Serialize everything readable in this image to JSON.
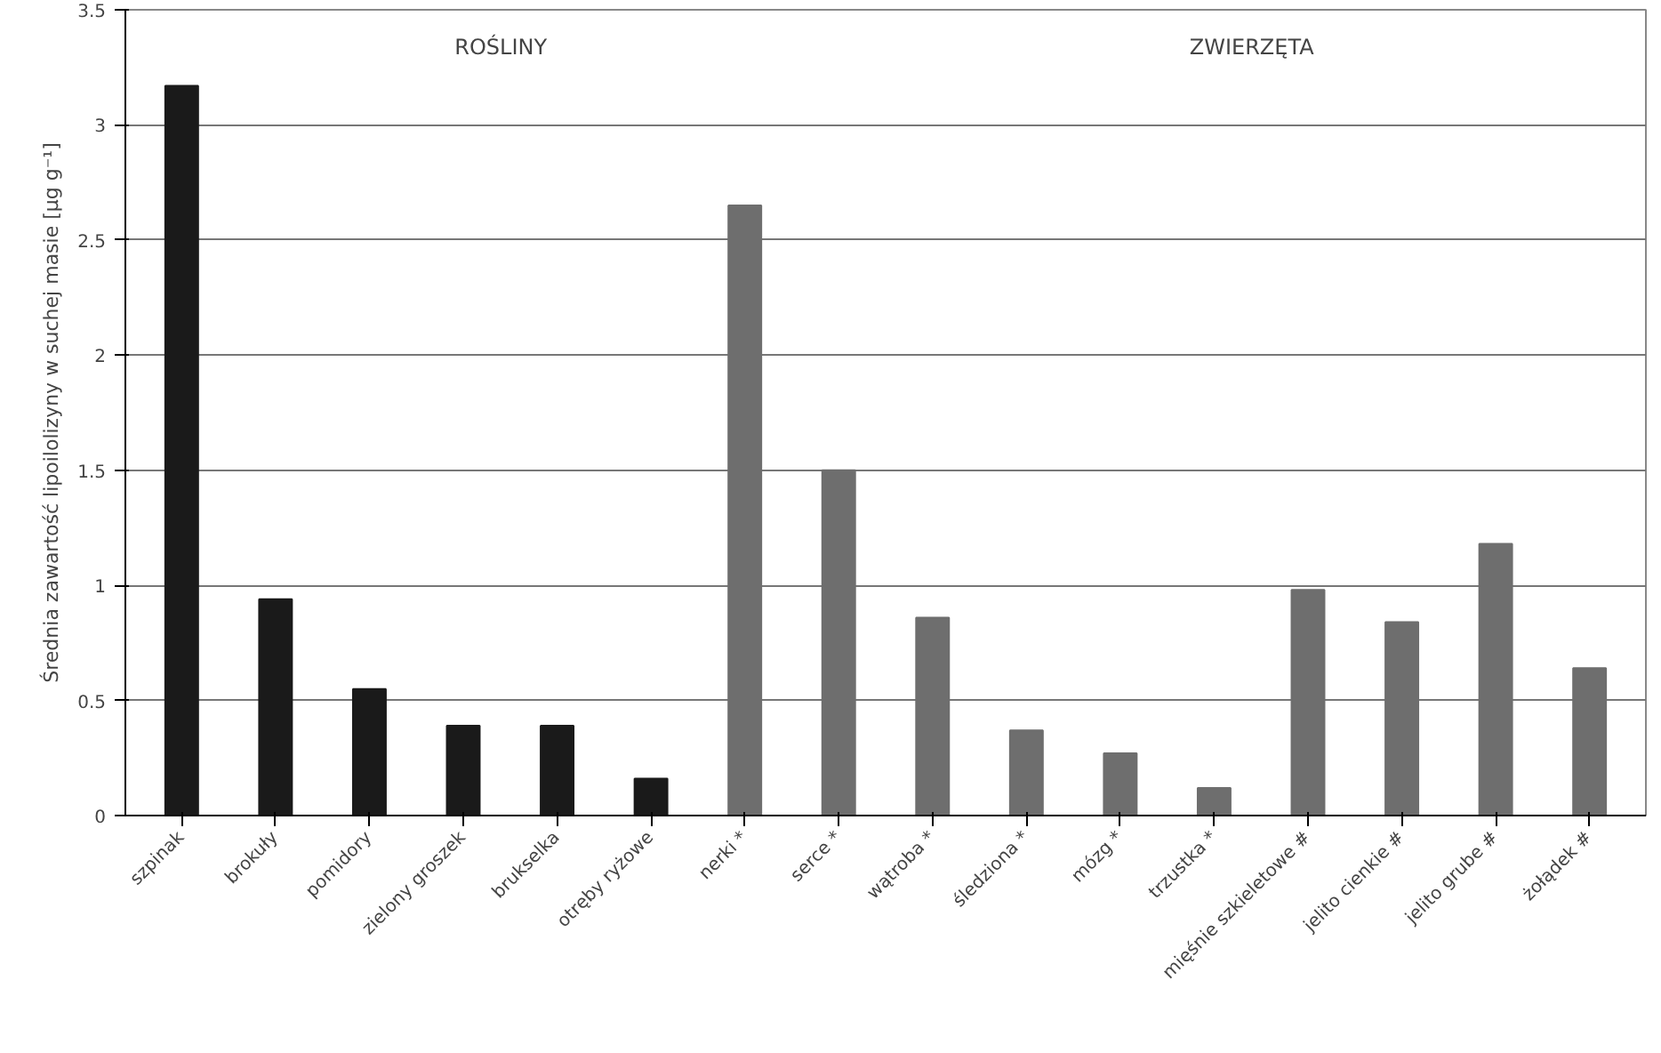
{
  "chart_data": {
    "type": "bar",
    "ylabel": "Średnia zawartość lipoilolizyny w suchej masie [µg g⁻¹]",
    "categories": [
      "szpinak",
      "brokuły",
      "pomidory",
      "zielony groszek",
      "brukselka",
      "otręby ryżowe",
      "nerki *",
      "serce *",
      "wątroba *",
      "śledziona *",
      "mózg *",
      "trzustka *",
      "mięśnie szkieletowe #",
      "jelito cienkie #",
      "jelito grube #",
      "żołądek #"
    ],
    "values": [
      3.17,
      0.94,
      0.55,
      0.39,
      0.39,
      0.16,
      2.65,
      1.5,
      0.86,
      0.37,
      0.27,
      0.12,
      0.98,
      0.84,
      1.18,
      0.64
    ],
    "colors": [
      "#1a1a1a",
      "#1a1a1a",
      "#1a1a1a",
      "#1a1a1a",
      "#1a1a1a",
      "#1a1a1a",
      "#6e6e6e",
      "#6e6e6e",
      "#6e6e6e",
      "#6e6e6e",
      "#6e6e6e",
      "#6e6e6e",
      "#6e6e6e",
      "#6e6e6e",
      "#6e6e6e",
      "#6e6e6e"
    ],
    "ylim": [
      0,
      3.5
    ],
    "yticks": [
      0,
      0.5,
      1,
      1.5,
      2,
      2.5,
      3,
      3.5
    ],
    "grid": "y",
    "annotations": [
      "ROŚLINY",
      "ZWIERZĘTA"
    ]
  }
}
